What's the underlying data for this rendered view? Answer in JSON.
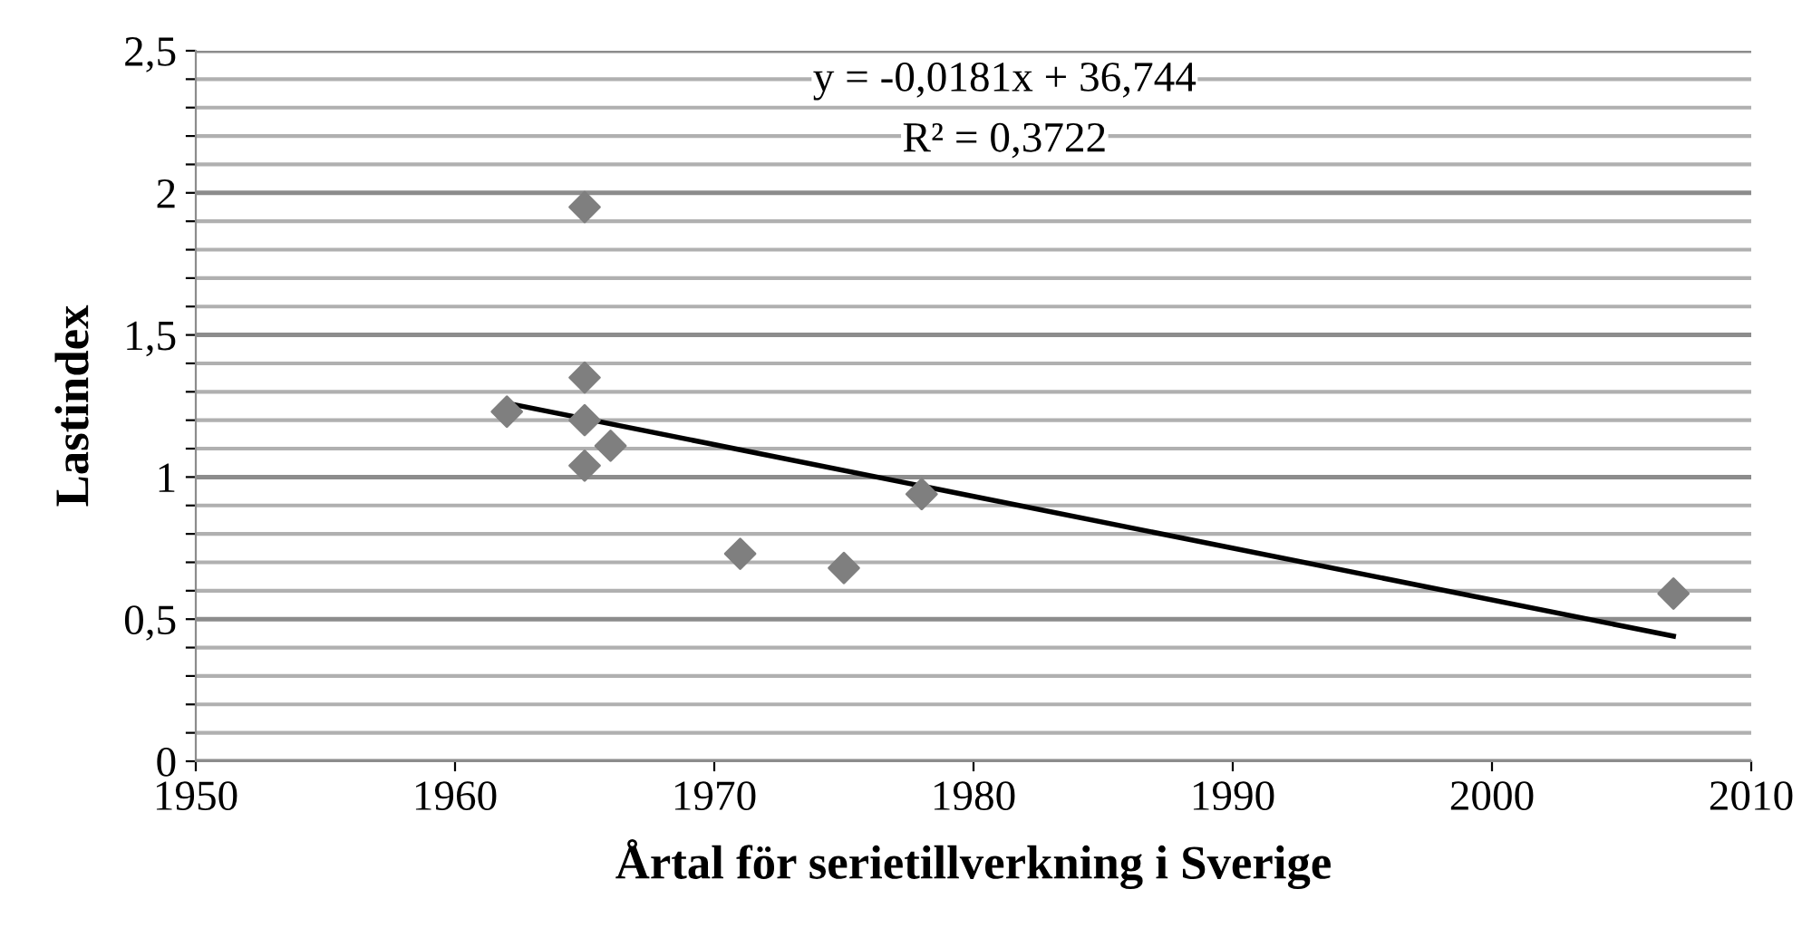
{
  "chart_data": {
    "type": "scatter",
    "xlabel": "Årtal för serietillverkning i Sverige",
    "ylabel": "Lastindex",
    "annotations": [
      "y = -0,0181x + 36,744",
      "R² = 0,3722"
    ],
    "series": [
      {
        "color": "#7f7f7f",
        "marker": "diamond",
        "x": [
          1962,
          1965,
          1965,
          1965,
          1965,
          1966,
          1971,
          1975,
          1978,
          2007
        ],
        "values": [
          1.23,
          1.95,
          1.35,
          1.2,
          1.04,
          1.11,
          0.73,
          0.68,
          0.94,
          0.59
        ]
      },
      {
        "type": "line",
        "color": "#000000",
        "marker": "none",
        "line_style": "solid",
        "x": [
          1962,
          2007
        ],
        "values": [
          1.26,
          0.44
        ]
      }
    ],
    "xlim": [
      1950,
      2010
    ],
    "xticks": [
      1950,
      1960,
      1970,
      1980,
      1990,
      2000,
      2010
    ],
    "ylim": [
      0,
      2.5
    ],
    "yticks": [
      0,
      {
        "value": 0.1,
        "label": null
      },
      {
        "value": 0.2,
        "label": null
      },
      {
        "value": 0.3,
        "label": null
      },
      {
        "value": 0.4,
        "label": null
      },
      {
        "value": 0.5,
        "label": "0,5"
      },
      {
        "value": 0.6,
        "label": null
      },
      {
        "value": 0.7,
        "label": null
      },
      {
        "value": 0.8,
        "label": null
      },
      {
        "value": 0.9,
        "label": null
      },
      1,
      {
        "value": 1.1,
        "label": null
      },
      {
        "value": 1.2,
        "label": null
      },
      {
        "value": 1.3,
        "label": null
      },
      {
        "value": 1.4,
        "label": null
      },
      {
        "value": 1.5,
        "label": "1,5"
      },
      {
        "value": 1.6,
        "label": null
      },
      {
        "value": 1.7,
        "label": null
      },
      {
        "value": 1.8,
        "label": null
      },
      {
        "value": 1.9,
        "label": null
      },
      2,
      {
        "value": 2.1,
        "label": null
      },
      {
        "value": 2.2,
        "label": null
      },
      {
        "value": 2.3,
        "label": null
      },
      {
        "value": 2.4,
        "label": null
      },
      {
        "value": 2.5,
        "label": "2,5"
      }
    ],
    "grid": "y",
    "legend": false
  }
}
